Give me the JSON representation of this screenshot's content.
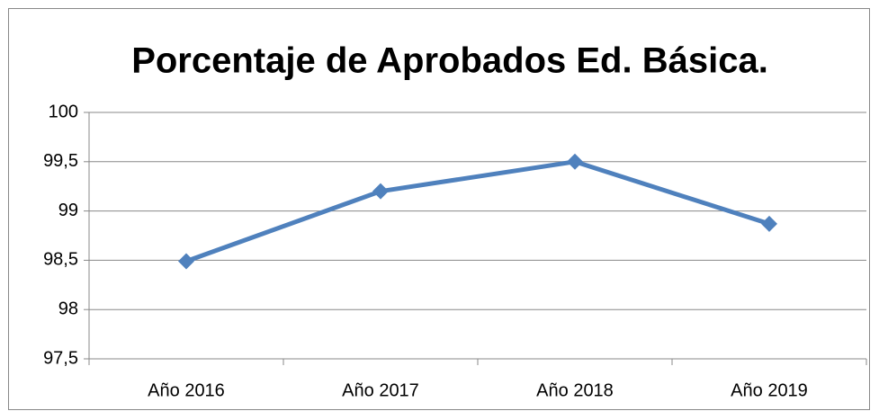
{
  "chart_data": {
    "type": "line",
    "title": "Porcentaje de Aprobados Ed. Básica.",
    "categories": [
      "Año 2016",
      "Año 2017",
      "Año 2018",
      "Año 2019"
    ],
    "values": [
      98.49,
      99.2,
      99.5,
      98.87
    ],
    "color": "#4f81bd",
    "ylim": [
      97.5,
      100
    ],
    "yticks": [
      {
        "value": 97.5,
        "label": "97,5"
      },
      98,
      {
        "value": 98.5,
        "label": "98,5"
      },
      99,
      {
        "value": 99.5,
        "label": "99,5"
      },
      100
    ],
    "grid": true
  }
}
